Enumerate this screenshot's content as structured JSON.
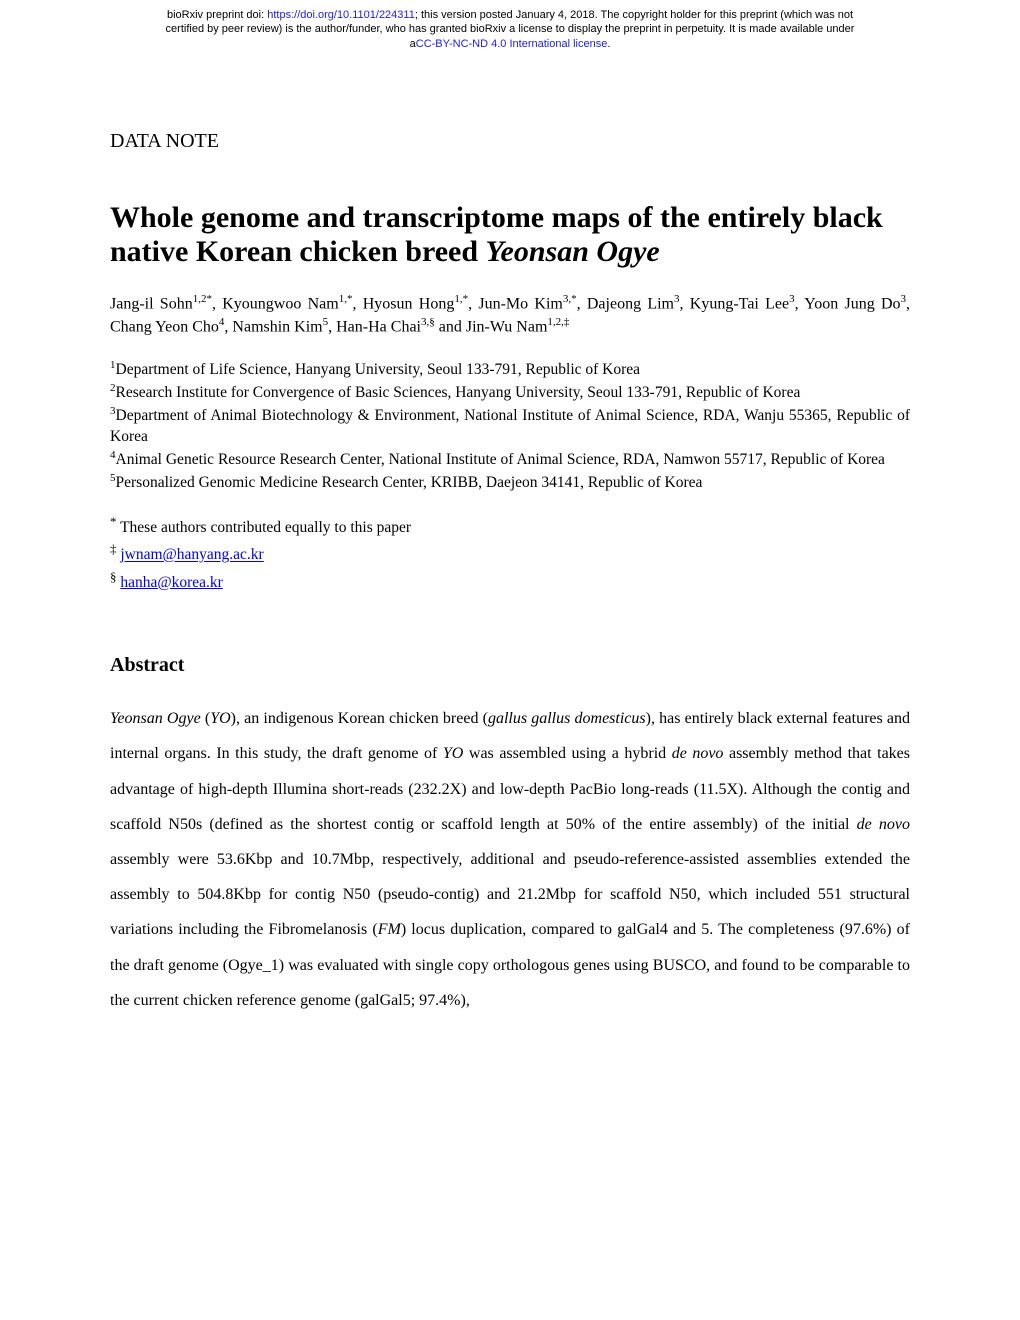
{
  "header": {
    "line1_prefix": "bioRxiv preprint doi: ",
    "doi_url": "https://doi.org/10.1101/224311",
    "line1_suffix": "; this version posted January 4, 2018. The copyright holder for this preprint (which was not",
    "line2": "certified by peer review) is the author/funder, who has granted bioRxiv a license to display the preprint in perpetuity. It is made available under",
    "license_prefix": "a",
    "license_text": "CC-BY-NC-ND 4.0 International license",
    "license_suffix": "."
  },
  "data_note": "DATA NOTE",
  "title_part1": "Whole genome and transcriptome maps of the entirely black native Korean chicken breed ",
  "title_italic": "Yeonsan Ogye",
  "authors_html": "Jang-il Sohn<sup>1,2*</sup>, Kyoungwoo Nam<sup>1,*</sup>, Hyosun Hong<sup>1,*</sup>, Jun-Mo Kim<sup>3,*</sup>,  Dajeong Lim<sup>3</sup>, Kyung-Tai Lee<sup>3</sup>, Yoon Jung Do<sup>3</sup>, Chang Yeon Cho<sup>4</sup>, Namshin Kim<sup>5</sup>, Han-Ha Chai<sup>3,§</sup> and Jin-Wu Nam<sup>1,2,‡</sup>",
  "affiliations": {
    "a1": "Department of Life Science, Hanyang University, Seoul 133-791, Republic of Korea",
    "a2": "Research Institute for Convergence of Basic Sciences, Hanyang University, Seoul 133-791, Republic of Korea",
    "a3": "Department of Animal Biotechnology & Environment, National Institute of Animal Science, RDA, Wanju 55365, Republic of Korea",
    "a4": "Animal Genetic Resource Research Center, National Institute of Animal Science, RDA, Namwon 55717, Republic of Korea",
    "a5": "Personalized Genomic Medicine Research Center, KRIBB, Daejeon 34141, Republic of Korea"
  },
  "notes": {
    "equal": "These authors contributed equally to this paper",
    "email1": "jwnam@hanyang.ac.kr",
    "email2": "hanha@korea.kr"
  },
  "abstract_heading": "Abstract",
  "abstract_parts": {
    "p1_italic1": "Yeonsan Ogye",
    "p1_t1": " (",
    "p1_italic2": "YO",
    "p1_t2": "), an indigenous Korean chicken breed (",
    "p1_italic3": "gallus gallus domesticus",
    "p1_t3": "), has entirely black external features and internal organs. In this study, the draft genome of ",
    "p1_italic4": "YO",
    "p1_t4": " was assembled using a hybrid ",
    "p1_italic5": "de novo",
    "p1_t5": " assembly method that takes advantage of high-depth Illumina short-reads (232.2X) and low-depth PacBio long-reads (11.5X). Although the contig and scaffold N50s (defined as the shortest contig or scaffold length at 50% of the entire assembly) of the initial ",
    "p1_italic6": "de novo",
    "p1_t6": " assembly were 53.6Kbp and 10.7Mbp, respectively, additional and pseudo-reference-assisted assemblies extended the assembly to 504.8Kbp for contig N50 (pseudo-contig) and 21.2Mbp for scaffold N50, which included 551 structural variations including the Fibromelanosis (",
    "p1_italic7": "FM",
    "p1_t7": ") locus duplication, compared to galGal4 and 5. The completeness (97.6%) of the draft genome (Ogye_1) was evaluated with single copy orthologous genes using BUSCO, and found to be comparable to the current chicken reference genome (galGal5; 97.4%),"
  }
}
